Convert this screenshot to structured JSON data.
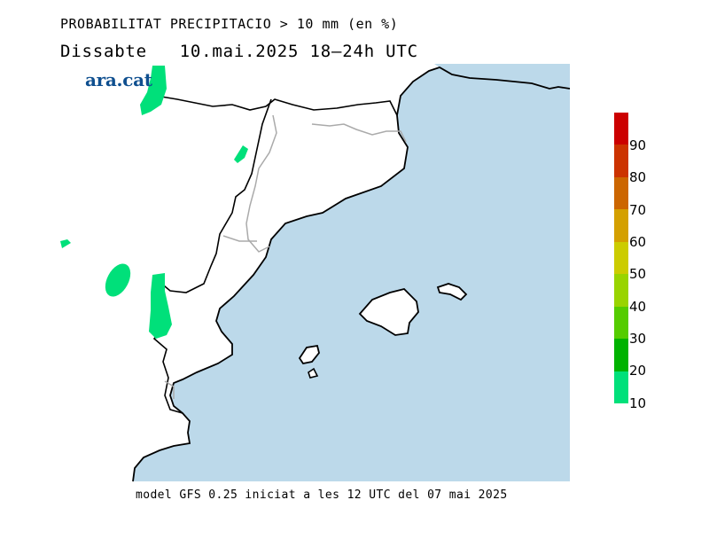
{
  "title": "PROBABILITAT PRECIPITACIO > 10 mm (en %)",
  "subtitle": "Dissabte   10.mai.2025 18—24h UTC",
  "logo": "ara.cat",
  "footer": "model GFS 0.25 iniciat a les 12 UTC del 07 mai 2025",
  "colors": {
    "sea": "#bcd9ea",
    "land": "#ffffff",
    "coast": "#000000",
    "border": "#aaaaaa",
    "precip_10": "#00e07a"
  },
  "legend": {
    "labels": [
      "90",
      "80",
      "70",
      "60",
      "50",
      "40",
      "30",
      "20",
      "10"
    ],
    "colors": [
      "#cc0000",
      "#cc3300",
      "#cc6600",
      "#d4a000",
      "#cccc00",
      "#99d400",
      "#55cc00",
      "#00b300",
      "#00cc33",
      "#00e07a"
    ]
  }
}
